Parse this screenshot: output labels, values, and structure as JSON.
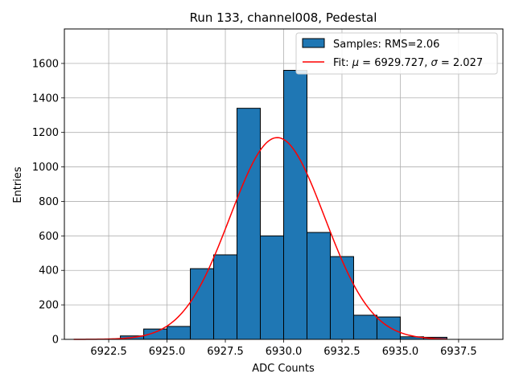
{
  "chart_data": {
    "type": "histogram",
    "title": "Run 133, channel008, Pedestal",
    "xlabel": "ADC Counts",
    "ylabel": "Entries",
    "xlim": [
      6920.6,
      6939.4
    ],
    "ylim": [
      0,
      1800
    ],
    "xticks": [
      6922.5,
      6925.0,
      6927.5,
      6930.0,
      6932.5,
      6935.0,
      6937.5
    ],
    "xtick_labels": [
      "6922.5",
      "6925.0",
      "6927.5",
      "6930.0",
      "6932.5",
      "6935.0",
      "6937.5"
    ],
    "yticks": [
      0,
      200,
      400,
      600,
      800,
      1000,
      1200,
      1400,
      1600
    ],
    "ytick_labels": [
      "0",
      "200",
      "400",
      "600",
      "800",
      "1000",
      "1200",
      "1400",
      "1600"
    ],
    "grid": true,
    "legend_position": "top-right",
    "bar_color": "#1f77b4",
    "bar_edge_color": "#000000",
    "fit_color": "#ff0000",
    "bins": {
      "left_edges": [
        6923,
        6924,
        6925,
        6926,
        6927,
        6928,
        6929,
        6930,
        6931,
        6932,
        6933,
        6934,
        6935,
        6936
      ],
      "width": 1,
      "counts": [
        20,
        60,
        75,
        410,
        490,
        1340,
        600,
        1560,
        620,
        480,
        140,
        130,
        15,
        12
      ]
    },
    "fit": {
      "mu": 6929.727,
      "sigma": 2.027,
      "amplitude": 1170,
      "x_range": [
        6921,
        6937
      ]
    },
    "legend": {
      "samples_label": "Samples: RMS=2.06",
      "fit_label_prefix": "Fit: ",
      "mu_symbol": "μ",
      "mu_text": " = 6929.727, ",
      "sigma_symbol": "σ",
      "sigma_text": " = 2.027"
    }
  }
}
